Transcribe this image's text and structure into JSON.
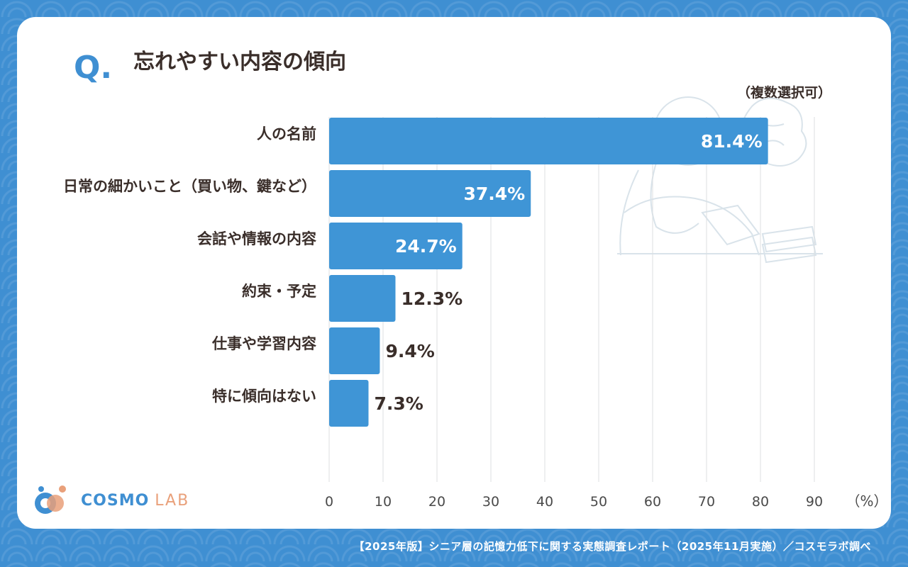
{
  "header": {
    "q_mark": "Q.",
    "title": "忘れやすい内容の傾向",
    "note": "（複数選択可）"
  },
  "chart_data": {
    "type": "bar",
    "orientation": "horizontal",
    "categories": [
      "人の名前",
      "日常の細かいこと（買い物、鍵など）",
      "会話や情報の内容",
      "約束・予定",
      "仕事や学習内容",
      "特に傾向はない"
    ],
    "values": [
      81.4,
      37.4,
      24.7,
      12.3,
      9.4,
      7.3
    ],
    "value_labels": [
      "81.4%",
      "37.4%",
      "24.7%",
      "12.3%",
      "9.4%",
      "7.3%"
    ],
    "xlim": [
      0,
      90
    ],
    "x_ticks": [
      0,
      10,
      20,
      30,
      40,
      50,
      60,
      70,
      80,
      90
    ],
    "x_unit": "（%）",
    "grid": true,
    "bar_color": "#3f95d6"
  },
  "logo": {
    "brand": "COSMO",
    "brand_lab": "LAB"
  },
  "footer": {
    "source": "【2025年版】シニア層の記憶力低下に関する実態調査レポート（2025年11月実施）／コスモラボ調べ"
  }
}
